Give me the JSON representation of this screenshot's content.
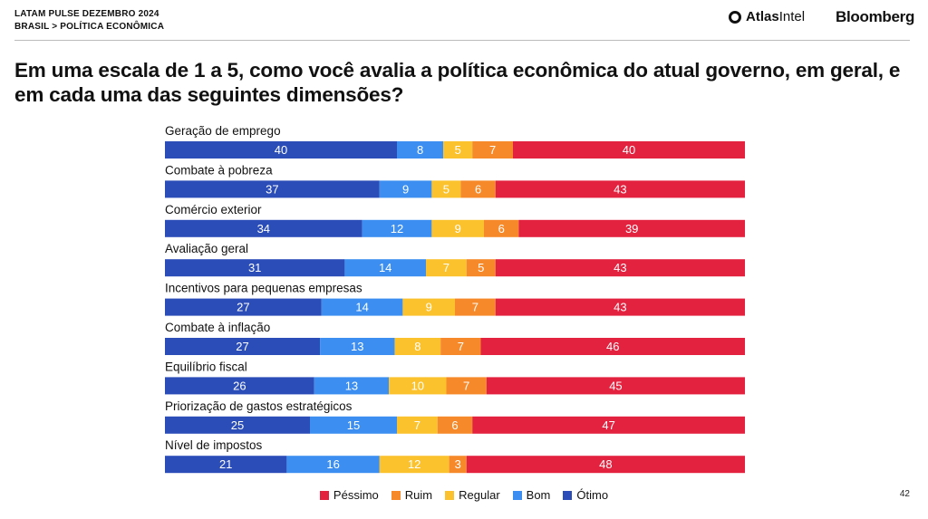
{
  "header": {
    "kicker": "LATAM PULSE DEZEMBRO 2024",
    "breadcrumb": "BRASIL > POLÍTICA ECONÔMICA",
    "logo_atlas_1": "Atlas",
    "logo_atlas_2": "Intel",
    "logo_bloomberg": "Bloomberg"
  },
  "page_number": "42",
  "colors": {
    "otimo": "#2B4DB8",
    "bom": "#3C8FF0",
    "regular": "#FBC22E",
    "ruim": "#F68A2A",
    "pessimo": "#E3223F"
  },
  "chart_data": {
    "type": "bar",
    "orientation": "horizontal",
    "stacked": true,
    "title": "Em uma escala de 1 a 5, como você avalia a política econômica do atual governo, em geral, e em cada uma das seguintes dimensões?",
    "categories": [
      "Geração de emprego",
      "Combate à pobreza",
      "Comércio exterior",
      "Avaliação geral",
      "Incentivos para pequenas empresas",
      "Combate à inflação",
      "Equilíbrio fiscal",
      "Priorização de gastos estratégicos",
      "Nível de impostos"
    ],
    "series": [
      {
        "name": "Ótimo",
        "color": "#2B4DB8",
        "values": [
          40,
          37,
          34,
          31,
          27,
          27,
          26,
          25,
          21
        ]
      },
      {
        "name": "Bom",
        "color": "#3C8FF0",
        "values": [
          8,
          9,
          12,
          14,
          14,
          13,
          13,
          15,
          16
        ]
      },
      {
        "name": "Regular",
        "color": "#FBC22E",
        "values": [
          5,
          5,
          9,
          7,
          9,
          8,
          10,
          7,
          12
        ]
      },
      {
        "name": "Ruim",
        "color": "#F68A2A",
        "values": [
          7,
          6,
          6,
          5,
          7,
          7,
          7,
          6,
          3
        ]
      },
      {
        "name": "Péssimo",
        "color": "#E3223F",
        "values": [
          40,
          43,
          39,
          43,
          43,
          46,
          45,
          47,
          48
        ]
      }
    ],
    "legend": [
      {
        "name": "Péssimo",
        "color": "#E3223F"
      },
      {
        "name": "Ruim",
        "color": "#F68A2A"
      },
      {
        "name": "Regular",
        "color": "#FBC22E"
      },
      {
        "name": "Bom",
        "color": "#3C8FF0"
      },
      {
        "name": "Ótimo",
        "color": "#2B4DB8"
      }
    ],
    "legend_position": "bottom-center",
    "data_labels": true,
    "grid": false
  }
}
